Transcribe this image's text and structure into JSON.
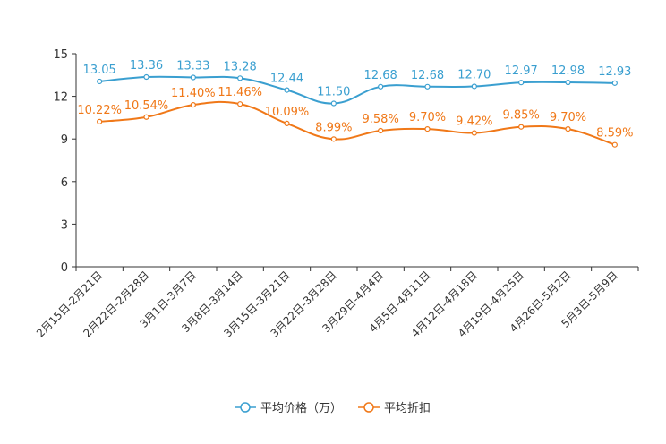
{
  "chart_data": {
    "type": "line",
    "title": "",
    "xlabel": "",
    "ylabel": "",
    "ylim": [
      0,
      15
    ],
    "yticks": [
      0,
      3,
      6,
      9,
      12,
      15
    ],
    "categories": [
      "2月15日-2月21日",
      "2月22日-2月28日",
      "3月1日-3月7日",
      "3月8日-3月14日",
      "3月15日-3月21日",
      "3月22日-3月28日",
      "3月29日-4月4日",
      "4月5日-4月11日",
      "4月12日-4月18日",
      "4月19日-4月25日",
      "4月26日-5月2日",
      "5月3日-5月9日"
    ],
    "series": [
      {
        "name": "平均价格（万）",
        "color": "#3a9fd0",
        "values": [
          13.05,
          13.36,
          13.33,
          13.28,
          12.44,
          11.5,
          12.68,
          12.68,
          12.7,
          12.97,
          12.98,
          12.93
        ],
        "labels": [
          "13.05",
          "13.36",
          "13.33",
          "13.28",
          "12.44",
          "11.50",
          "12.68",
          "12.68",
          "12.70",
          "12.97",
          "12.98",
          "12.93"
        ]
      },
      {
        "name": "平均折扣",
        "color": "#f07818",
        "values": [
          10.22,
          10.54,
          11.4,
          11.46,
          10.09,
          8.99,
          9.58,
          9.7,
          9.42,
          9.85,
          9.7,
          8.59
        ],
        "labels": [
          "10.22%",
          "10.54%",
          "11.40%",
          "11.46%",
          "10.09%",
          "8.99%",
          "9.58%",
          "9.70%",
          "9.42%",
          "9.85%",
          "9.70%",
          "8.59%"
        ]
      }
    ],
    "legend_position": "bottom-center"
  }
}
